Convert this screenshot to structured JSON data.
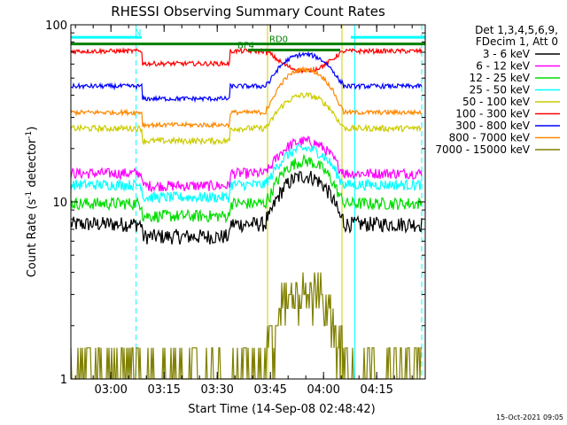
{
  "chart_data": {
    "type": "line",
    "title": "RHESSI Observing Summary Count Rates",
    "xlabel": "Start Time (14-Sep-08 02:48:42)",
    "ylabel": "Count Rate (s",
    "ylabel_sup": "-1",
    "ylabel_tail": " detector",
    "ylabel_sup2": "-1",
    "ylabel_close": ")",
    "footer_date": "15-Oct-2021 09:05",
    "yscale": "log",
    "ylim": [
      1,
      100
    ],
    "xlim": [
      0,
      100
    ],
    "xunit": "minutes after 02:48:42",
    "yticks": [
      {
        "v": 1,
        "label": "1"
      },
      {
        "v": 10,
        "label": "10"
      },
      {
        "v": 100,
        "label": "100"
      }
    ],
    "xticks": [
      {
        "t": 11.3,
        "label": "03:00"
      },
      {
        "t": 26.3,
        "label": "03:15"
      },
      {
        "t": 41.3,
        "label": "03:30"
      },
      {
        "t": 56.3,
        "label": "03:45"
      },
      {
        "t": 71.3,
        "label": "04:00"
      },
      {
        "t": 86.3,
        "label": "04:15"
      }
    ],
    "legend_header": [
      "Det 1,3,4,5,6,9,",
      "FDecim 1, Att 0"
    ],
    "legend_position": "right",
    "series": [
      {
        "name": "3 - 6 keV",
        "color": "#000000",
        "night": 7.5,
        "peak": 14,
        "noise": 0.1
      },
      {
        "name": "6 - 12 keV",
        "color": "#ff00ff",
        "night": 14.5,
        "peak": 22,
        "noise": 0.07
      },
      {
        "name": "12 - 25 keV",
        "color": "#00dd00",
        "night": 9.8,
        "peak": 17,
        "noise": 0.08
      },
      {
        "name": "25 - 50 keV",
        "color": "#00ffff",
        "night": 12.5,
        "peak": 20,
        "noise": 0.07
      },
      {
        "name": "50 - 100 keV",
        "color": "#cccc00",
        "night": 26,
        "peak": 40,
        "noise": 0.04
      },
      {
        "name": "100 - 300 keV",
        "color": "#ff0000",
        "night": 71,
        "peak": 55,
        "noise": 0.03
      },
      {
        "name": "300 - 800 keV",
        "color": "#0000ff",
        "night": 45,
        "peak": 68,
        "noise": 0.03
      },
      {
        "name": "800 - 7000 keV",
        "color": "#ff8800",
        "night": 32,
        "peak": 56,
        "noise": 0.03
      },
      {
        "name": "7000 - 15000 keV",
        "color": "#808000",
        "night": 1.4,
        "peak": 3.5,
        "noise": 0.25
      }
    ],
    "flag_bars": [
      {
        "label": "N",
        "color": "#00ffff",
        "y": 85,
        "segments": [
          [
            0,
            20
          ],
          [
            79,
            100
          ]
        ]
      },
      {
        "label": "RD0",
        "color": "#008000",
        "y": 78,
        "segments": [
          [
            0,
            100
          ]
        ]
      },
      {
        "label": "BF4",
        "color": "#008000",
        "y": 72,
        "segments": [
          [
            50,
            76
          ]
        ]
      }
    ],
    "markers": [
      {
        "t": 0,
        "color": "#00ffff",
        "style": "solid"
      },
      {
        "t": 18.4,
        "color": "#00ffff",
        "style": "dashed"
      },
      {
        "t": 55.5,
        "color": "#cccc00",
        "style": "solid"
      },
      {
        "t": 76.5,
        "color": "#cccc00",
        "style": "solid"
      },
      {
        "t": 80.1,
        "color": "#00ffff",
        "style": "solid"
      },
      {
        "t": 99.0,
        "color": "#00ffff",
        "style": "dashed"
      }
    ],
    "day_window": [
      56,
      76
    ]
  }
}
